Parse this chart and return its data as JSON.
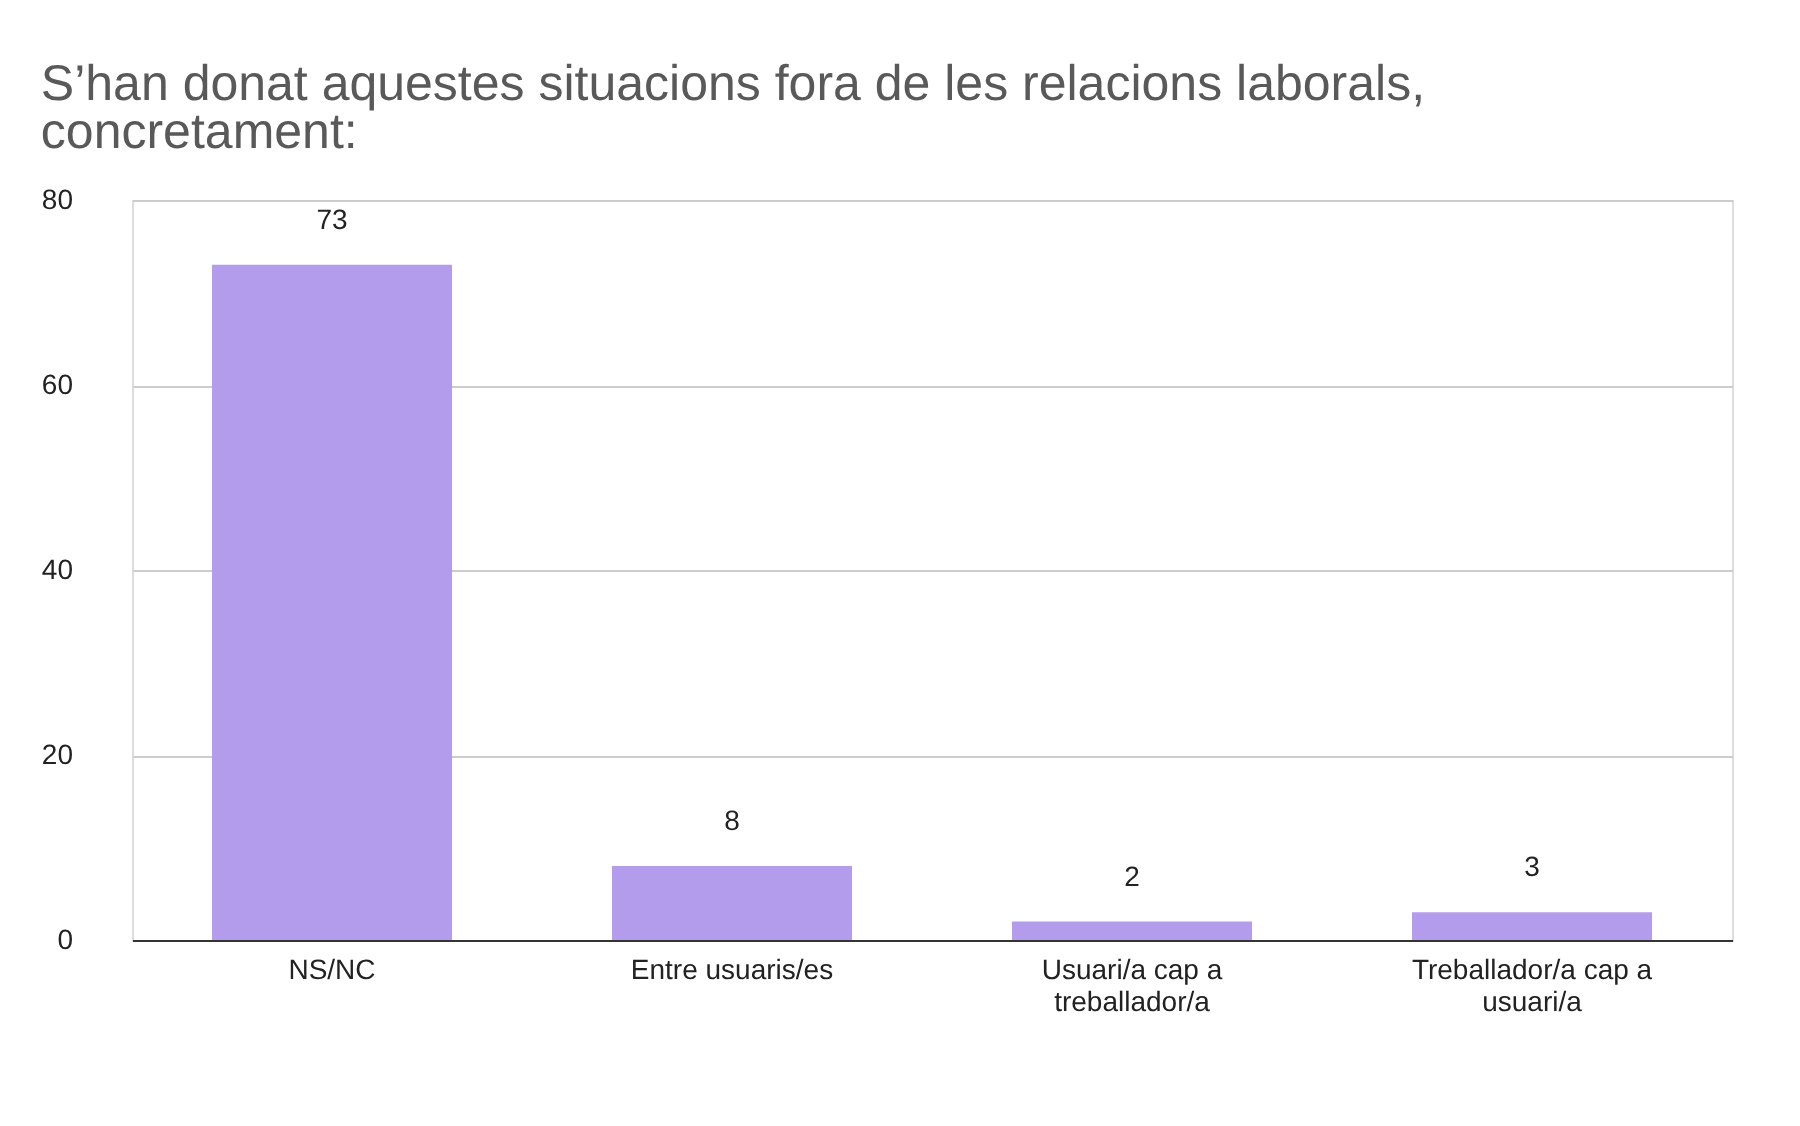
{
  "chart_data": {
    "type": "bar",
    "title": "S’han donat aquestes situacions fora de les relacions laborals, concretament:",
    "categories": [
      "NS/NC",
      "Entre usuaris/es",
      "Usuari/a cap a treballador/a",
      "Treballador/a cap a usuari/a"
    ],
    "values": [
      73,
      8,
      2,
      3
    ],
    "color": "#b39ceb",
    "ylim": [
      0,
      80
    ],
    "yticks": [
      0,
      20,
      40,
      60,
      80
    ],
    "grid": "y",
    "data_labels": true
  }
}
